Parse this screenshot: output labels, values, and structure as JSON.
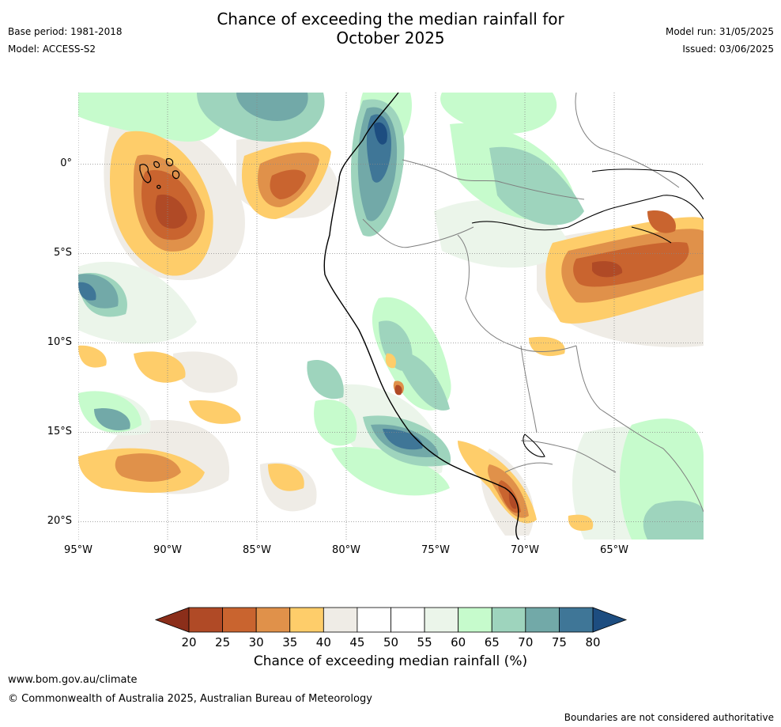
{
  "header": {
    "title_line1": "Chance of exceeding the median rainfall for",
    "title_line2": "October 2025",
    "base_period": "Base period: 1981-2018",
    "model": "Model: ACCESS-S2",
    "model_run": "Model run: 31/05/2025",
    "issued": "Issued: 03/06/2025"
  },
  "map": {
    "lon_ticks": [
      {
        "label": "95°W",
        "lon": -95
      },
      {
        "label": "90°W",
        "lon": -90
      },
      {
        "label": "85°W",
        "lon": -85
      },
      {
        "label": "80°W",
        "lon": -80
      },
      {
        "label": "75°W",
        "lon": -75
      },
      {
        "label": "70°W",
        "lon": -70
      },
      {
        "label": "65°W",
        "lon": -65
      }
    ],
    "lat_ticks": [
      {
        "label": "0°",
        "lat": 0
      },
      {
        "label": "5°S",
        "lat": -5
      },
      {
        "label": "10°S",
        "lat": -10
      },
      {
        "label": "15°S",
        "lat": -15
      },
      {
        "label": "20°S",
        "lat": -20
      }
    ],
    "lon_range": [
      -95,
      -60
    ],
    "lat_range": [
      -21,
      4
    ]
  },
  "colorbar": {
    "ticks": [
      "20",
      "25",
      "30",
      "35",
      "40",
      "45",
      "50",
      "55",
      "60",
      "65",
      "70",
      "75",
      "80"
    ],
    "colors": [
      "#b04a26",
      "#c9642f",
      "#e0914a",
      "#fecd6a",
      "#efece6",
      "#ffffff",
      "#ffffff",
      "#ebf5ea",
      "#c6fbcc",
      "#9ed4bd",
      "#72a9a8",
      "#3f7697"
    ],
    "low_color": "#8b2e1a",
    "high_color": "#1d4d80",
    "label": "Chance of exceeding median rainfall (%)"
  },
  "footer": {
    "website": "www.bom.gov.au/climate",
    "copyright": "© Commonwealth of Australia 2025, Australian Bureau of Meteorology",
    "disclaimer": "Boundaries are not considered authoritative"
  }
}
